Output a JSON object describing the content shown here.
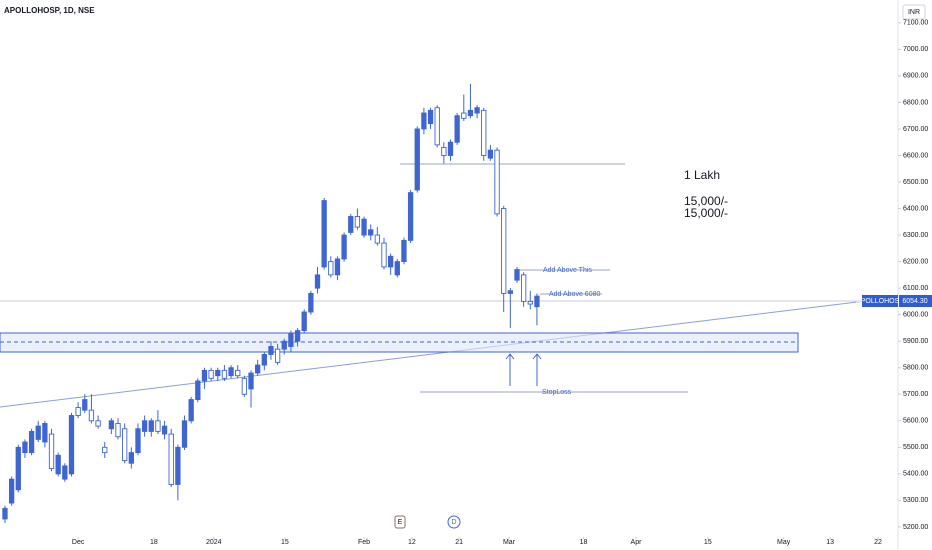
{
  "chart_data": {
    "type": "candlestick",
    "title": "APOLLOHOSP, 1D, NSE",
    "currency": "INR",
    "color": "#3f66d0",
    "open": [
      5230,
      5290,
      5340,
      5480,
      5480,
      5530,
      5520,
      5550,
      5400,
      5380,
      5400,
      5650,
      5640,
      5640,
      5600,
      5500,
      5570,
      5590,
      5570,
      5440,
      5480,
      5560,
      5560,
      5600,
      5550,
      5550,
      5360,
      5500,
      5600,
      5680,
      5750,
      5790,
      5770,
      5790,
      5770,
      5790,
      5760,
      5720,
      5780,
      5810,
      5850,
      5870,
      5870,
      5880,
      5900,
      5940,
      6010,
      6100,
      6180,
      6200,
      6150,
      6210,
      6310,
      6370,
      6300,
      6300,
      6300,
      6270,
      6180,
      6150,
      6200,
      6280,
      6470,
      6700,
      6720,
      6780,
      6630,
      6600,
      6650,
      6760,
      6750,
      6760,
      6770,
      6590,
      6620,
      6400,
      6080,
      6130,
      6150,
      6050,
      6030
    ],
    "high": [
      5280,
      5390,
      5510,
      5530,
      5570,
      5600,
      5600,
      5570,
      5480,
      5440,
      5630,
      5670,
      5700,
      5700,
      5620,
      5520,
      5610,
      5610,
      5590,
      5500,
      5590,
      5620,
      5610,
      5640,
      5600,
      5570,
      5510,
      5620,
      5690,
      5760,
      5800,
      5800,
      5800,
      5810,
      5810,
      5810,
      5770,
      5790,
      5830,
      5860,
      5900,
      5890,
      5910,
      5940,
      5950,
      6020,
      6090,
      6180,
      6440,
      6220,
      6220,
      6310,
      6380,
      6400,
      6370,
      6340,
      6330,
      6290,
      6230,
      6210,
      6290,
      6470,
      6710,
      6780,
      6780,
      6790,
      6650,
      6660,
      6760,
      6830,
      6870,
      6790,
      6780,
      6640,
      6630,
      6410,
      6100,
      6180,
      6160,
      6090,
      6080
    ],
    "low": [
      5215,
      5280,
      5330,
      5460,
      5470,
      5520,
      5500,
      5410,
      5390,
      5370,
      5390,
      5610,
      5630,
      5590,
      5570,
      5460,
      5550,
      5530,
      5440,
      5420,
      5470,
      5540,
      5540,
      5550,
      5530,
      5350,
      5300,
      5490,
      5590,
      5670,
      5720,
      5750,
      5750,
      5750,
      5760,
      5760,
      5690,
      5650,
      5770,
      5790,
      5830,
      5810,
      5850,
      5860,
      5880,
      5930,
      6000,
      6080,
      6170,
      6140,
      6130,
      6200,
      6300,
      6320,
      6290,
      6280,
      6260,
      6170,
      6150,
      6140,
      6190,
      6270,
      6460,
      6680,
      6700,
      6630,
      6570,
      6580,
      6640,
      6730,
      6740,
      6740,
      6580,
      6580,
      6370,
      6010,
      5950,
      6120,
      6030,
      6020,
      5960
    ],
    "close": [
      5270,
      5380,
      5500,
      5520,
      5560,
      5580,
      5590,
      5420,
      5470,
      5430,
      5620,
      5620,
      5680,
      5600,
      5580,
      5480,
      5600,
      5540,
      5450,
      5480,
      5570,
      5600,
      5600,
      5560,
      5580,
      5360,
      5500,
      5600,
      5680,
      5750,
      5790,
      5760,
      5790,
      5760,
      5800,
      5770,
      5700,
      5780,
      5810,
      5850,
      5880,
      5820,
      5900,
      5930,
      5940,
      6010,
      6080,
      6150,
      6430,
      6150,
      6210,
      6300,
      6370,
      6330,
      6360,
      6320,
      6270,
      6180,
      6220,
      6200,
      6280,
      6460,
      6700,
      6760,
      6770,
      6640,
      6600,
      6650,
      6750,
      6740,
      6770,
      6780,
      6600,
      6620,
      6380,
      6080,
      6090,
      6170,
      6050,
      6040,
      6070
    ],
    "xlim": [
      -0.75,
      134.3
    ],
    "xticks": [
      {
        "value": 11,
        "label": "Dec"
      },
      {
        "value": 22.4,
        "label": "18"
      },
      {
        "value": 31.4,
        "label": "2024"
      },
      {
        "value": 42.1,
        "label": "15"
      },
      {
        "value": 54,
        "label": "Feb"
      },
      {
        "value": 61.2,
        "label": "12"
      },
      {
        "value": 68.3,
        "label": "21"
      },
      {
        "value": 75.8,
        "label": "Mar"
      },
      {
        "value": 87,
        "label": "18"
      },
      {
        "value": 94.9,
        "label": "Apr"
      },
      {
        "value": 105.7,
        "label": "15"
      },
      {
        "value": 117.1,
        "label": "May"
      },
      {
        "value": 124.1,
        "label": "13"
      },
      {
        "value": 131.3,
        "label": "22"
      }
    ],
    "ylim": [
      5162,
      7186
    ],
    "yticks": [
      {
        "value": 5200,
        "label": "5200.00"
      },
      {
        "value": 5300,
        "label": "5300.00"
      },
      {
        "value": 5400,
        "label": "5400.00"
      },
      {
        "value": 5500,
        "label": "5500.00"
      },
      {
        "value": 5600,
        "label": "5600.00"
      },
      {
        "value": 5700,
        "label": "5700.00"
      },
      {
        "value": 5800,
        "label": "5800.00"
      },
      {
        "value": 5900,
        "label": "5900.00"
      },
      {
        "value": 6000,
        "label": "6000.00"
      },
      {
        "value": 6100,
        "label": "6100.00"
      },
      {
        "value": 6200,
        "label": "6200.00"
      },
      {
        "value": 6300,
        "label": "6300.00"
      },
      {
        "value": 6400,
        "label": "6400.00"
      },
      {
        "value": 6500,
        "label": "6500.00"
      },
      {
        "value": 6600,
        "label": "6600.00"
      },
      {
        "value": 6700,
        "label": "6700.00"
      },
      {
        "value": 6800,
        "label": "6800.00"
      },
      {
        "value": 6900,
        "label": "6900.00"
      },
      {
        "value": 7000,
        "label": "7000.00"
      },
      {
        "value": 7100,
        "label": "7100.00"
      }
    ],
    "annotations": {
      "lakh": "1 Lakh",
      "amount_1": "15,000/-",
      "amount_2": "15,000/-",
      "add_above_this": "Add Above This",
      "add_above_6080": "Add Above 6080",
      "stoploss": "StopLoss",
      "symbol_tag": "APOLLOHOSP",
      "last_price": "6054.30",
      "event_e": "E",
      "event_d": "D"
    }
  }
}
